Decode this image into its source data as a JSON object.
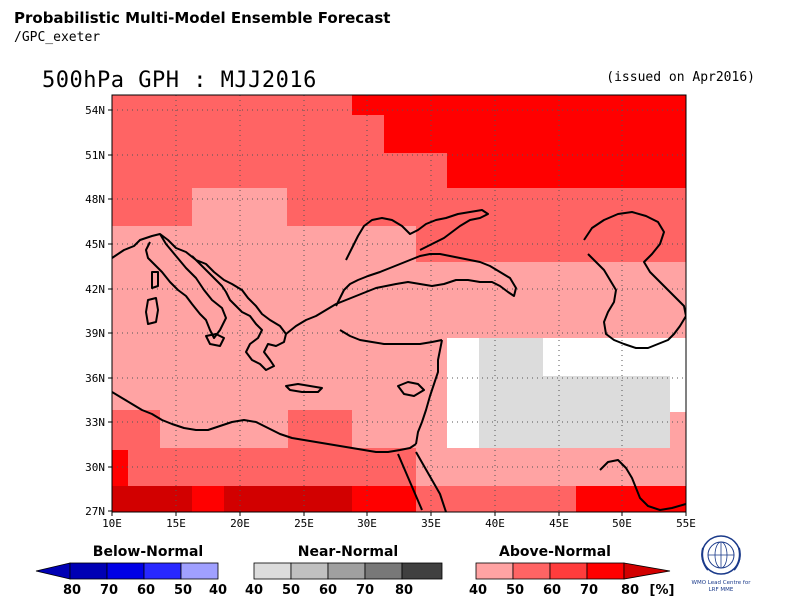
{
  "header": {
    "title": "Probabilistic Multi-Model Ensemble Forecast",
    "subtitle": "/GPC_exeter"
  },
  "map": {
    "title": "500hPa GPH : MJJ2016",
    "issued": "(issued on Apr2016)",
    "lat_range": [
      27,
      55
    ],
    "lon_range": [
      10,
      55
    ],
    "lat_ticks": [
      "54N",
      "51N",
      "48N",
      "45N",
      "42N",
      "39N",
      "36N",
      "33N",
      "30N",
      "27N"
    ],
    "lon_ticks": [
      "10E",
      "15E",
      "20E",
      "25E",
      "30E",
      "35E",
      "40E",
      "45E",
      "50E",
      "55E"
    ]
  },
  "colors": {
    "above_40": "#ffa3a3",
    "above_50": "#ff6464",
    "above_60": "#ff3c3c",
    "above_70": "#ff0000",
    "above_80": "#d20000",
    "near_40": "#dcdcdc",
    "near_50": "#c0c0c0",
    "near_60": "#a0a0a0",
    "near_70": "#787878",
    "near_80": "#404040",
    "below_40": "#a0a0ff",
    "below_50": "#5a5aff",
    "below_60": "#2828ff",
    "below_70": "#0000e6",
    "below_80": "#0000b4"
  },
  "legend": {
    "below": {
      "label": "Below-Normal",
      "ticks": [
        "80",
        "70",
        "60",
        "50",
        "40"
      ]
    },
    "near": {
      "label": "Near-Normal",
      "ticks": [
        "40",
        "50",
        "60",
        "70",
        "80"
      ]
    },
    "above": {
      "label": "Above-Normal",
      "ticks": [
        "40",
        "50",
        "60",
        "70",
        "80"
      ],
      "unit": "[%]"
    }
  },
  "logo": {
    "line1": "WMO Lead Centre for",
    "line2": "LRF MME",
    "icon": "wmo-emblem-icon"
  }
}
